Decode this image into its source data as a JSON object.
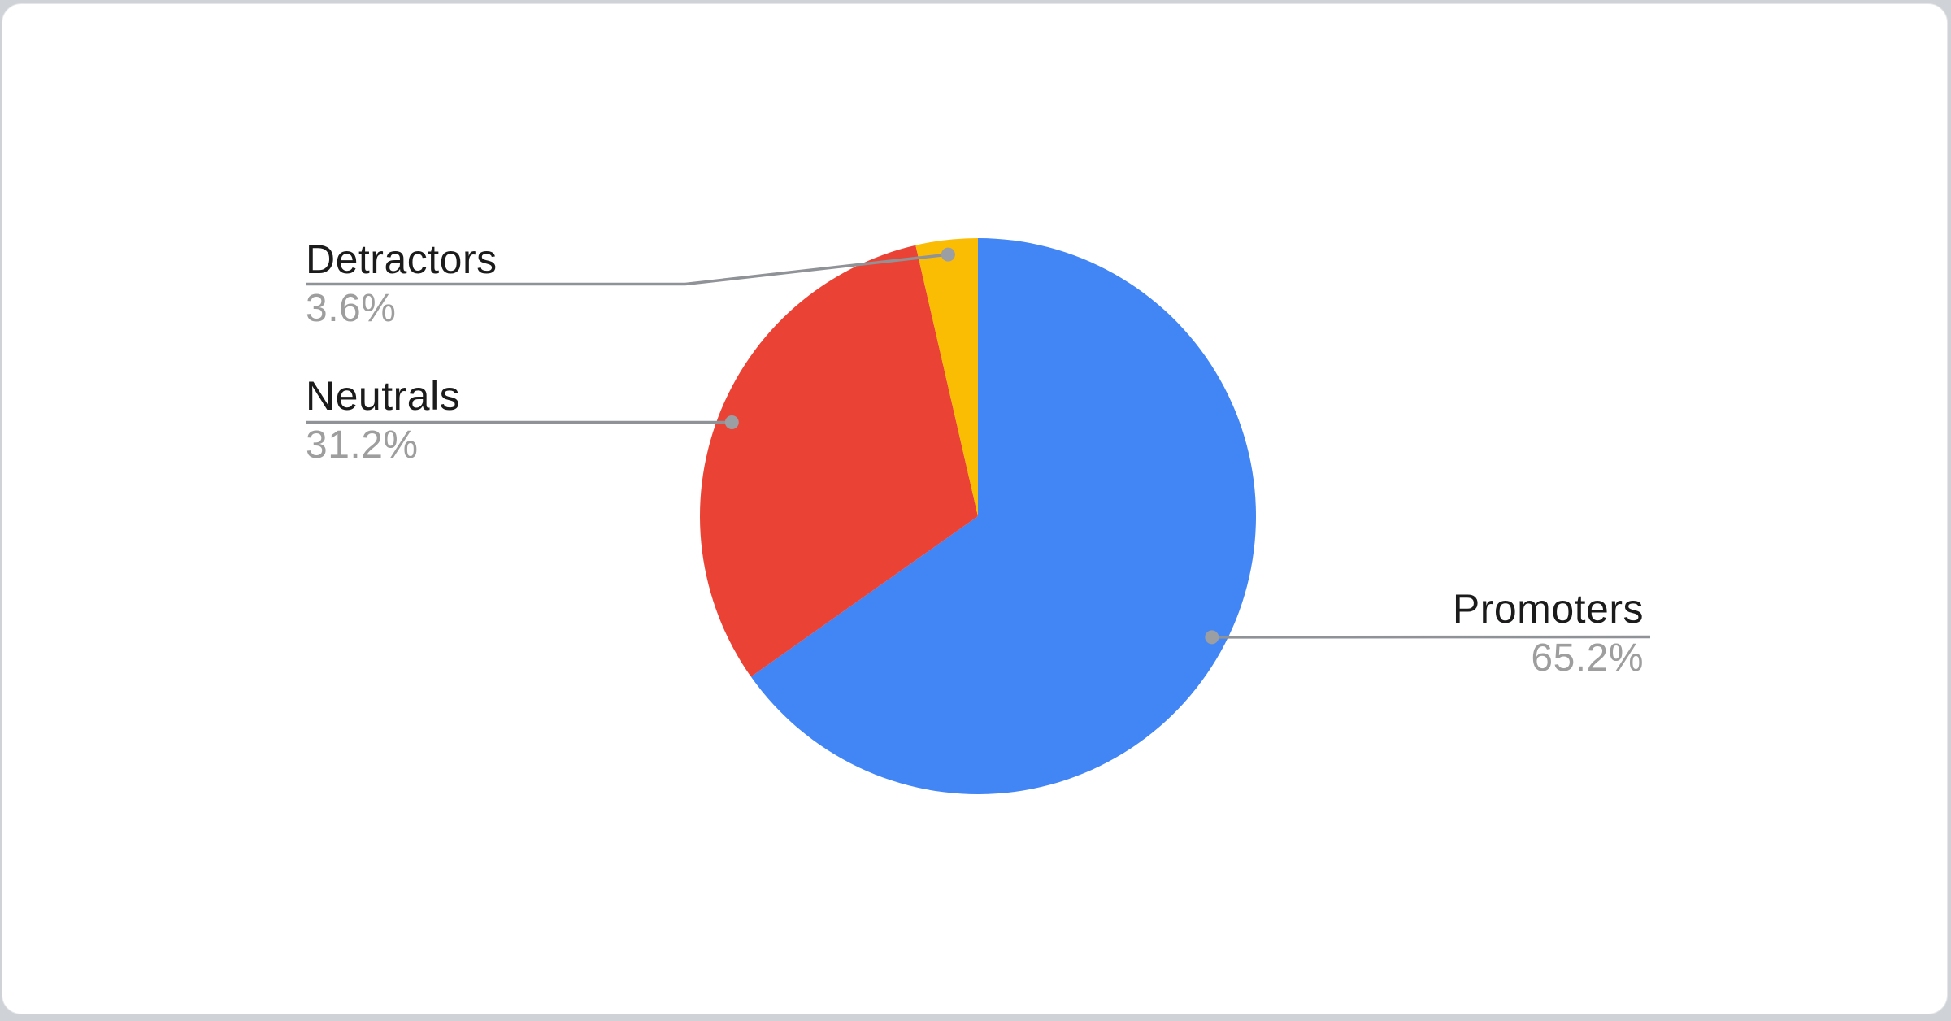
{
  "chart_data": {
    "type": "pie",
    "title": "",
    "legend": "callout-labels",
    "direction": "clockwise",
    "start_angle_deg": 0,
    "total": 100,
    "slices": [
      {
        "label": "Promoters",
        "value": 65.2,
        "display": "65.2%",
        "color": "#4285F4"
      },
      {
        "label": "Neutrals",
        "value": 31.2,
        "display": "31.2%",
        "color": "#EA4335"
      },
      {
        "label": "Detractors",
        "value": 3.6,
        "display": "3.6%",
        "color": "#FBBC04"
      }
    ]
  },
  "style_colors": {
    "card_background": "#ffffff",
    "page_background": "#cfd2d6",
    "leader_line": "#8f9296",
    "callout_dot": "#9b9ea3",
    "label_text": "#1b1b1b",
    "value_text": "#9e9e9e"
  }
}
